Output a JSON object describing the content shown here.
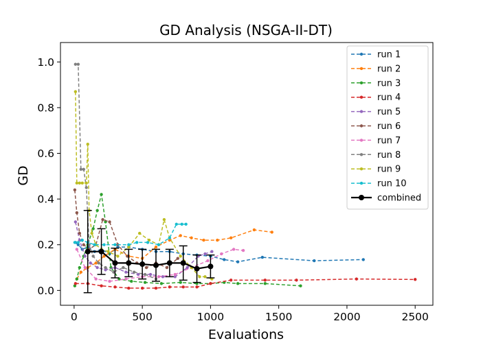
{
  "chart_data": {
    "type": "line",
    "title": "GD Analysis (NSGA-II-DT)",
    "xlabel": "Evaluations",
    "ylabel": "GD",
    "xlim": [
      -100,
      2630
    ],
    "ylim": [
      -0.065,
      1.085
    ],
    "xticks": [
      0,
      500,
      1000,
      1500,
      2000,
      2500
    ],
    "yticks": [
      0.0,
      0.2,
      0.4,
      0.6,
      0.8,
      1.0
    ],
    "x_tick_labels": [
      "0",
      "500",
      "1000",
      "1500",
      "2000",
      "2500"
    ],
    "y_tick_labels": [
      "0.0",
      "0.2",
      "0.4",
      "0.6",
      "0.8",
      "1.0"
    ],
    "grid": false,
    "legend_position": "top-right",
    "series": [
      {
        "name": "run 1",
        "color": "#1f77b4",
        "style": "dashed",
        "x": [
          10,
          30,
          60,
          100,
          150,
          200,
          260,
          320,
          400,
          500,
          600,
          700,
          800,
          900,
          1000,
          1100,
          1200,
          1380,
          1760,
          2120
        ],
        "y": [
          0.21,
          0.2,
          0.18,
          0.19,
          0.17,
          0.18,
          0.16,
          0.19,
          0.19,
          0.18,
          0.17,
          0.17,
          0.16,
          0.155,
          0.15,
          0.135,
          0.125,
          0.145,
          0.13,
          0.135
        ]
      },
      {
        "name": "run 2",
        "color": "#ff7f0e",
        "style": "dashed",
        "x": [
          20,
          50,
          100,
          160,
          220,
          300,
          400,
          500,
          600,
          700,
          780,
          860,
          950,
          1050,
          1150,
          1320,
          1450
        ],
        "y": [
          0.05,
          0.08,
          0.1,
          0.12,
          0.15,
          0.18,
          0.15,
          0.14,
          0.19,
          0.22,
          0.24,
          0.23,
          0.22,
          0.22,
          0.23,
          0.265,
          0.255
        ]
      },
      {
        "name": "run 3",
        "color": "#2ca02c",
        "style": "dashed",
        "x": [
          5,
          20,
          40,
          70,
          100,
          140,
          170,
          200,
          230,
          270,
          330,
          420,
          520,
          640,
          780,
          900,
          1000,
          1100,
          1200,
          1400,
          1660
        ],
        "y": [
          0.02,
          0.05,
          0.1,
          0.15,
          0.2,
          0.27,
          0.35,
          0.42,
          0.3,
          0.1,
          0.05,
          0.04,
          0.035,
          0.03,
          0.035,
          0.03,
          0.03,
          0.035,
          0.03,
          0.03,
          0.02
        ]
      },
      {
        "name": "run 4",
        "color": "#d62728",
        "style": "dashed",
        "x": [
          10,
          100,
          200,
          300,
          400,
          500,
          600,
          700,
          800,
          900,
          1000,
          1150,
          1400,
          1630,
          2070,
          2500
        ],
        "y": [
          0.03,
          0.03,
          0.02,
          0.015,
          0.01,
          0.01,
          0.01,
          0.015,
          0.015,
          0.015,
          0.03,
          0.045,
          0.045,
          0.045,
          0.05,
          0.048
        ]
      },
      {
        "name": "run 5",
        "color": "#9467bd",
        "style": "dashed",
        "x": [
          10,
          40,
          80,
          120,
          170,
          230,
          300,
          380,
          470,
          560,
          650,
          740,
          830,
          910,
          960,
          1010
        ],
        "y": [
          0.3,
          0.22,
          0.15,
          0.12,
          0.1,
          0.09,
          0.1,
          0.08,
          0.07,
          0.07,
          0.06,
          0.06,
          0.1,
          0.15,
          0.16,
          0.17
        ]
      },
      {
        "name": "run 6",
        "color": "#8c564b",
        "style": "dashed",
        "x": [
          5,
          20,
          40,
          70,
          110,
          160,
          210,
          260,
          320,
          390,
          460,
          530,
          600,
          680,
          760
        ],
        "y": [
          0.44,
          0.34,
          0.25,
          0.2,
          0.18,
          0.2,
          0.31,
          0.3,
          0.2,
          0.15,
          0.12,
          0.1,
          0.12,
          0.1,
          0.14
        ]
      },
      {
        "name": "run 7",
        "color": "#e377c2",
        "style": "dashed",
        "x": [
          20,
          80,
          160,
          260,
          380,
          500,
          620,
          740,
          860,
          980,
          1080,
          1170,
          1240
        ],
        "y": [
          0.18,
          0.1,
          0.05,
          0.04,
          0.05,
          0.06,
          0.06,
          0.07,
          0.1,
          0.13,
          0.16,
          0.18,
          0.175
        ]
      },
      {
        "name": "run 8",
        "color": "#7f7f7f",
        "style": "dashed",
        "x": [
          10,
          30,
          50,
          70,
          90,
          110,
          140,
          180,
          230,
          290,
          360,
          440,
          520,
          600
        ],
        "y": [
          0.99,
          0.99,
          0.53,
          0.53,
          0.45,
          0.2,
          0.15,
          0.12,
          0.1,
          0.08,
          0.1,
          0.08,
          0.07,
          0.05
        ]
      },
      {
        "name": "run 9",
        "color": "#bcbd22",
        "style": "dashed",
        "x": [
          10,
          20,
          40,
          60,
          90,
          100,
          110,
          130,
          160,
          200,
          250,
          320,
          400,
          480,
          550,
          620,
          660,
          700,
          780,
          860,
          920,
          960,
          1010
        ],
        "y": [
          0.87,
          0.47,
          0.47,
          0.47,
          0.47,
          0.64,
          0.35,
          0.25,
          0.2,
          0.18,
          0.17,
          0.15,
          0.19,
          0.25,
          0.22,
          0.2,
          0.31,
          0.23,
          0.15,
          0.1,
          0.06,
          0.06,
          0.05
        ]
      },
      {
        "name": "run 10",
        "color": "#17becf",
        "style": "dashed",
        "x": [
          5,
          30,
          60,
          100,
          150,
          220,
          300,
          400,
          460,
          540,
          620,
          700,
          750,
          790,
          820
        ],
        "y": [
          0.21,
          0.21,
          0.22,
          0.21,
          0.2,
          0.2,
          0.2,
          0.2,
          0.21,
          0.21,
          0.2,
          0.23,
          0.29,
          0.29,
          0.29
        ]
      },
      {
        "name": "combined",
        "color": "#000000",
        "style": "solid",
        "x": [
          100,
          200,
          300,
          400,
          500,
          600,
          700,
          800,
          900,
          1000
        ],
        "y": [
          0.17,
          0.17,
          0.12,
          0.12,
          0.115,
          0.11,
          0.12,
          0.12,
          0.095,
          0.105
        ],
        "yerr": [
          0.18,
          0.1,
          0.065,
          0.06,
          0.065,
          0.07,
          0.06,
          0.075,
          0.06,
          0.05
        ]
      }
    ]
  }
}
